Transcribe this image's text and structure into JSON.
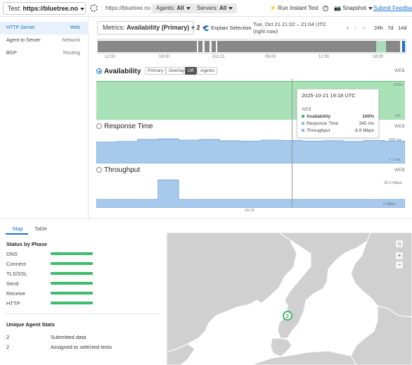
{
  "topbar": {
    "test_prefix": "Test:",
    "test_name": "https://bluetree.no",
    "url": "https://bluetree.no",
    "agents_label": "Agents:",
    "agents_value": "All",
    "servers_label": "Servers:",
    "servers_value": "All",
    "run_instant_test": "Run Instant Test",
    "snapshot": "Snapshot",
    "submit_feedback": "Submit Feedback"
  },
  "sidebar": {
    "items": [
      {
        "label": "HTTP Server",
        "tag": "Web"
      },
      {
        "label": "Agent to Server",
        "tag": "Network"
      },
      {
        "label": "BGP",
        "tag": "Routing"
      }
    ]
  },
  "metrics": {
    "prefix": "Metrics:",
    "value": "Availability",
    "suffix": "(Primary) + 2",
    "explain_selection": "Explain Selection",
    "range_text": "Tue, Oct 21 21:02 – 21:04 UTC (right now)",
    "range_buttons": [
      "24h",
      "7d",
      "14d"
    ]
  },
  "timeline": {
    "ticks": [
      "12:00",
      "18:00",
      "Oct 21",
      "06:00",
      "12:00",
      "18:00"
    ]
  },
  "charts": {
    "availability": {
      "title": "Availability",
      "segments": [
        "Primary",
        "Overlay",
        "Off",
        "Agents"
      ],
      "active_segment": "Off",
      "web": "WEB",
      "axis_top": "100%",
      "axis_bottom": "0%"
    },
    "response_time": {
      "title": "Response Time",
      "web": "WEB",
      "axis_top": "500 ms",
      "axis_bottom": "< 1 ms"
    },
    "throughput": {
      "title": "Throughput",
      "web": "WEB",
      "axis_top": "25.5 Mbps",
      "axis_bottom": "0 Mbps",
      "x_label": "19:15"
    }
  },
  "tooltip": {
    "timestamp": "2025-10-21 19:18 UTC",
    "section": "WEB",
    "rows": [
      {
        "label": "Availability",
        "value": "100%",
        "color": "#3fbc6b"
      },
      {
        "label": "Response Time",
        "value": "345 ms",
        "color": "#8fb8e6"
      },
      {
        "label": "Throughput",
        "value": "6.8 Mbps",
        "color": "#8fb8e6"
      }
    ]
  },
  "bottom": {
    "tabs": [
      "Map",
      "Table"
    ],
    "status_title": "Status by Phase",
    "phases": [
      "DNS",
      "Connect",
      "TLS/SSL",
      "Send",
      "Receive",
      "HTTP"
    ],
    "unique_title": "Unique Agent Stats",
    "stats": [
      {
        "num": "2",
        "text": "Submitted data"
      },
      {
        "num": "2",
        "text": "Assigned to selected tests"
      }
    ],
    "map_marker": "2"
  },
  "colors": {
    "accent": "#1a73c8",
    "availability_fill": "#a9e2b6",
    "response_fill": "#a7c9ec",
    "phase_bar": "#3fbc6b"
  },
  "chart_data": [
    {
      "type": "area",
      "title": "Response Time",
      "x": [
        0,
        1,
        2,
        3,
        4,
        5,
        6,
        7,
        8,
        9,
        10,
        11,
        12,
        13,
        14
      ],
      "values": [
        330,
        340,
        370,
        380,
        360,
        370,
        350,
        345,
        360,
        355,
        345,
        350,
        340,
        355,
        345
      ],
      "ylim": [
        0,
        500
      ]
    },
    {
      "type": "area",
      "title": "Throughput",
      "x": [
        0,
        1,
        2,
        3,
        4,
        5,
        6,
        7,
        8,
        9,
        10,
        11,
        12,
        13,
        14
      ],
      "values": [
        6.8,
        6.8,
        6.8,
        22.5,
        6.8,
        6.8,
        6.8,
        6.8,
        6.8,
        6.8,
        6.8,
        6.8,
        6.8,
        6.8,
        6.8
      ],
      "ylim": [
        0,
        25.5
      ]
    }
  ]
}
